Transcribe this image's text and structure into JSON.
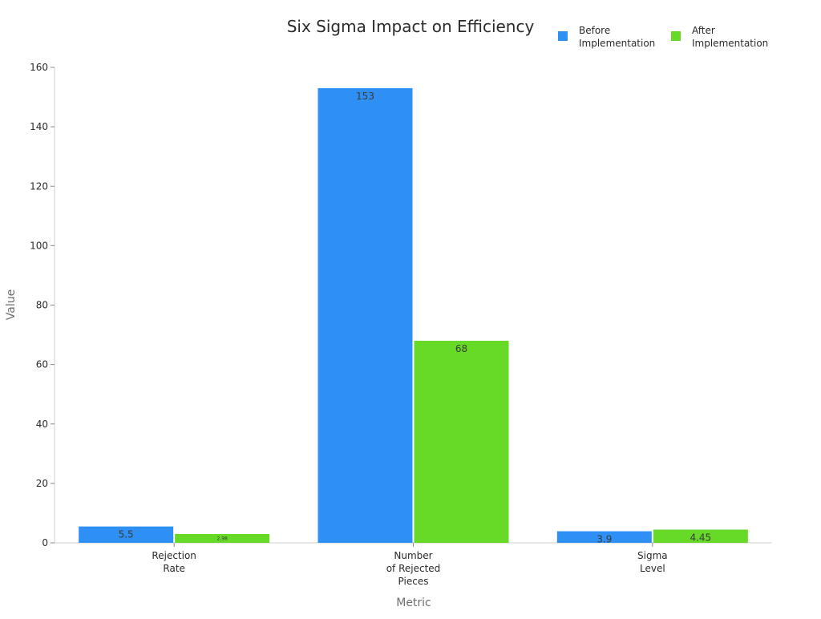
{
  "chart_data": {
    "type": "bar",
    "title": "Six Sigma Impact on Efficiency",
    "xlabel": "Metric",
    "ylabel": "Value",
    "ylim": [
      0,
      160
    ],
    "yticks": [
      0,
      20,
      40,
      60,
      80,
      100,
      120,
      140,
      160
    ],
    "categories": [
      [
        "Rejection",
        "Rate"
      ],
      [
        "Number",
        "of Rejected",
        "Pieces"
      ],
      [
        "Sigma",
        "Level"
      ]
    ],
    "series": [
      {
        "name": [
          "Before",
          "Implementation"
        ],
        "color": "#2e8ff5",
        "values": [
          5.5,
          153,
          3.9
        ],
        "value_labels": [
          "5.5",
          "153",
          "3.9"
        ]
      },
      {
        "name": [
          "After",
          "Implementation"
        ],
        "color": "#66da26",
        "values": [
          2.98,
          68,
          4.45
        ],
        "value_labels": [
          "2.98",
          "68",
          "4.45"
        ]
      }
    ],
    "legend_position": "top-right",
    "grid": false
  }
}
